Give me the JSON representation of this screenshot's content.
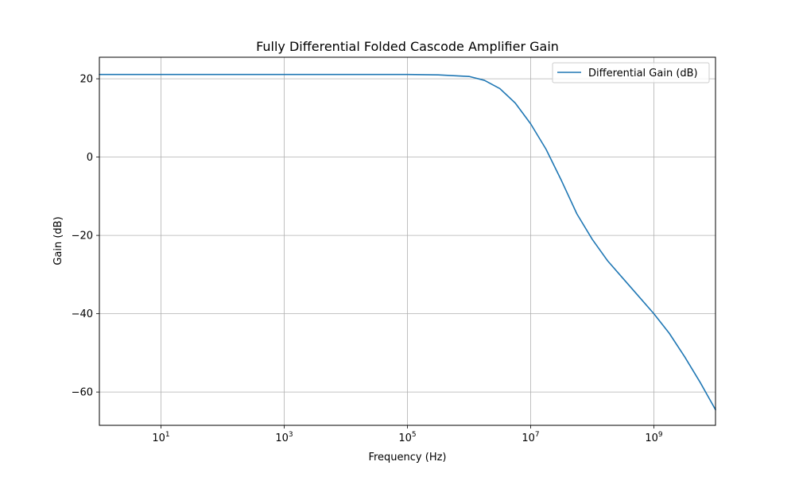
{
  "chart_data": {
    "type": "line",
    "title": "Fully Differential Folded Cascode Amplifier Gain",
    "xlabel": "Frequency (Hz)",
    "ylabel": "Gain (dB)",
    "xscale": "log",
    "xlim": [
      1,
      10000000000
    ],
    "ylim": [
      -68.5,
      25.5
    ],
    "grid": true,
    "legend_position": "top-right",
    "x_ticks": [
      {
        "value": 10,
        "base": "10",
        "exp": "1"
      },
      {
        "value": 1000,
        "base": "10",
        "exp": "3"
      },
      {
        "value": 100000,
        "base": "10",
        "exp": "5"
      },
      {
        "value": 10000000,
        "base": "10",
        "exp": "7"
      },
      {
        "value": 1000000000,
        "base": "10",
        "exp": "9"
      }
    ],
    "y_ticks": [
      {
        "value": 20,
        "label": "20"
      },
      {
        "value": 0,
        "label": "0"
      },
      {
        "value": -20,
        "label": "−20"
      },
      {
        "value": -40,
        "label": "−40"
      },
      {
        "value": -60,
        "label": "−60"
      }
    ],
    "series": [
      {
        "name": "Differential Gain (dB)",
        "color": "#1f77b4",
        "x": [
          1,
          10,
          100,
          1000,
          10000,
          100000,
          316228,
          1000000,
          1778279,
          3162278,
          5623413,
          10000000,
          17782794,
          31622777,
          56234133,
          100000000,
          177827941,
          316227766,
          562341325,
          1000000000,
          1778279410,
          3162277660,
          5623413252,
          10000000000
        ],
        "y": [
          21.1,
          21.1,
          21.1,
          21.1,
          21.1,
          21.1,
          21.0,
          20.6,
          19.6,
          17.5,
          13.8,
          8.5,
          2.0,
          -6.0,
          -14.5,
          -21.0,
          -26.5,
          -31.0,
          -35.5,
          -40.0,
          -45.0,
          -51.0,
          -57.5,
          -64.5
        ]
      }
    ]
  }
}
